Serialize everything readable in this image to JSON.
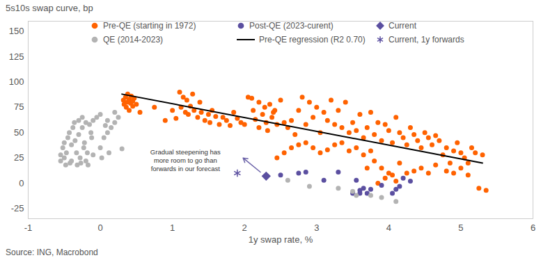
{
  "chart_data": {
    "type": "scatter",
    "y_label": "5s10s swap curve, bp",
    "x_label": "1y swap rate, %",
    "source": "Source: ING, Macrobond",
    "xlim": [
      -1,
      6
    ],
    "xticks": [
      -1,
      0,
      1,
      2,
      3,
      4,
      5,
      6
    ],
    "ylim": [
      -35,
      160
    ],
    "yticks": [
      -25,
      0,
      25,
      50,
      75,
      100,
      125,
      150
    ],
    "grid": false,
    "legend": "top",
    "series": [
      {
        "name": "Pre-QE (starting in 1972)",
        "type": "scatter",
        "marker": "circle",
        "color": "#ff6200",
        "x": [
          0.32,
          0.33,
          0.35,
          0.36,
          0.37,
          0.38,
          0.4,
          0.4,
          0.42,
          0.43,
          0.45,
          0.45,
          0.47,
          0.5,
          0.55,
          0.75,
          0.9,
          1.0,
          1.05,
          1.1,
          1.12,
          1.15,
          1.18,
          1.2,
          1.22,
          1.25,
          1.28,
          1.3,
          1.35,
          1.38,
          1.4,
          1.45,
          1.5,
          1.52,
          1.55,
          1.6,
          1.65,
          1.7,
          1.75,
          1.8,
          1.85,
          1.9,
          1.95,
          2.0,
          2.05,
          2.1,
          2.12,
          2.15,
          2.2,
          2.2,
          2.25,
          2.28,
          2.3,
          2.32,
          2.35,
          2.38,
          2.4,
          2.42,
          2.45,
          2.5,
          2.55,
          2.6,
          2.65,
          2.7,
          2.75,
          2.8,
          2.85,
          2.9,
          2.95,
          3.0,
          3.05,
          3.1,
          3.15,
          3.2,
          3.25,
          3.3,
          3.35,
          3.4,
          3.45,
          3.5,
          3.55,
          3.6,
          3.65,
          3.7,
          3.75,
          3.8,
          3.85,
          3.9,
          3.95,
          4.0,
          4.05,
          4.1,
          4.15,
          4.2,
          4.25,
          4.3,
          4.35,
          4.4,
          4.45,
          4.5,
          4.55,
          4.6,
          4.65,
          4.7,
          4.75,
          4.8,
          4.85,
          4.9,
          4.95,
          5.0,
          5.05,
          5.1,
          5.15,
          5.2,
          5.25,
          5.3,
          5.35,
          2.45,
          2.55,
          2.65,
          2.75,
          2.85,
          2.95,
          3.05,
          3.15,
          3.25,
          3.35,
          3.45,
          3.55,
          3.65,
          3.75,
          3.8,
          3.9,
          3.95,
          4.0,
          4.05,
          4.15,
          4.25,
          4.35,
          4.45,
          4.55,
          4.65,
          4.8,
          4.9,
          5.0,
          5.1,
          3.7,
          3.85,
          4.1
        ],
        "values": [
          82,
          78,
          85,
          75,
          80,
          88,
          83,
          72,
          79,
          86,
          76,
          81,
          84,
          78,
          70,
          75,
          62,
          72,
          64,
          90,
          75,
          85,
          70,
          82,
          68,
          76,
          88,
          72,
          65,
          80,
          70,
          62,
          68,
          60,
          72,
          66,
          58,
          65,
          62,
          57,
          70,
          64,
          60,
          58,
          85,
          84,
          72,
          63,
          55,
          80,
          68,
          75,
          60,
          52,
          78,
          65,
          70,
          72,
          58,
          82,
          60,
          55,
          62,
          48,
          72,
          85,
          58,
          80,
          65,
          75,
          50,
          70,
          62,
          82,
          58,
          72,
          55,
          80,
          50,
          60,
          52,
          68,
          45,
          55,
          70,
          48,
          60,
          42,
          58,
          52,
          40,
          65,
          50,
          45,
          38,
          55,
          48,
          42,
          35,
          50,
          45,
          38,
          47,
          42,
          28,
          35,
          20,
          32,
          40,
          30,
          25,
          8,
          35,
          30,
          -5,
          28,
          -7,
          25,
          30,
          35,
          38,
          40,
          35,
          30,
          33,
          38,
          40,
          32,
          35,
          28,
          32,
          22,
          15,
          5,
          10,
          8,
          20,
          10,
          12,
          15,
          10,
          18,
          12,
          10,
          15,
          20,
          15,
          0,
          2
        ]
      },
      {
        "name": "Post-QE (2023-curent)",
        "type": "scatter",
        "marker": "circle",
        "color": "#5b4fa0",
        "x": [
          2.5,
          2.75,
          2.85,
          3.1,
          3.3,
          3.5,
          3.55,
          3.6,
          3.6,
          3.65,
          3.7,
          3.75,
          3.9,
          4.05,
          4.1,
          4.15,
          4.2,
          4.3
        ],
        "values": [
          8,
          10,
          11,
          3,
          11,
          -10,
          3,
          -7,
          -10,
          -5,
          -10,
          -6,
          -2,
          -10,
          -6,
          -3,
          5,
          2
        ]
      },
      {
        "name": "Current",
        "type": "scatter",
        "marker": "diamond",
        "color": "#5b4fa0",
        "x": [
          2.3
        ],
        "values": [
          7
        ]
      },
      {
        "name": "QE (2014-2023)",
        "type": "scatter",
        "marker": "circle",
        "color": "#b3b3b3",
        "x": [
          -0.55,
          -0.55,
          -0.52,
          -0.5,
          -0.5,
          -0.48,
          -0.47,
          -0.45,
          -0.43,
          -0.42,
          -0.4,
          -0.4,
          -0.38,
          -0.36,
          -0.35,
          -0.33,
          -0.32,
          -0.3,
          -0.3,
          -0.28,
          -0.27,
          -0.25,
          -0.25,
          -0.23,
          -0.22,
          -0.2,
          -0.2,
          -0.18,
          -0.17,
          -0.15,
          -0.13,
          -0.12,
          -0.1,
          -0.1,
          -0.05,
          0.0,
          0.0,
          0.02,
          0.05,
          0.07,
          0.1,
          0.1,
          0.12,
          0.15,
          0.2,
          0.2,
          0.25,
          0.3,
          2.6,
          2.9,
          3.3,
          3.5,
          3.55,
          3.75,
          3.9,
          4.1
        ],
        "values": [
          22,
          28,
          35,
          40,
          25,
          18,
          30,
          45,
          50,
          20,
          22,
          38,
          55,
          60,
          42,
          30,
          18,
          62,
          48,
          25,
          20,
          65,
          55,
          35,
          40,
          60,
          22,
          30,
          18,
          58,
          50,
          45,
          62,
          28,
          65,
          68,
          35,
          25,
          45,
          57,
          62,
          50,
          30,
          55,
          60,
          70,
          65,
          34,
          3,
          -3,
          -5,
          -8,
          -12,
          -12,
          -14,
          -18
        ]
      },
      {
        "name": "Pre-QE regression (R2 0.70)",
        "type": "line",
        "line_style": "solid",
        "color": "#000000",
        "x": [
          0.3,
          5.3
        ],
        "values": [
          88,
          20
        ]
      },
      {
        "name": "Current, 1y forwards",
        "type": "scatter",
        "marker": "asterisk",
        "color": "#5b4fa0",
        "x": [
          1.9
        ],
        "values": [
          10
        ]
      }
    ],
    "annotations": [
      {
        "text": "Gradual steepening has\nmore room to go than\nforwards in our forecast",
        "x": 1.18,
        "y": 23,
        "arrow": {
          "x1": 2.22,
          "y1": 11,
          "x2": 1.98,
          "y2": 25
        }
      }
    ]
  }
}
